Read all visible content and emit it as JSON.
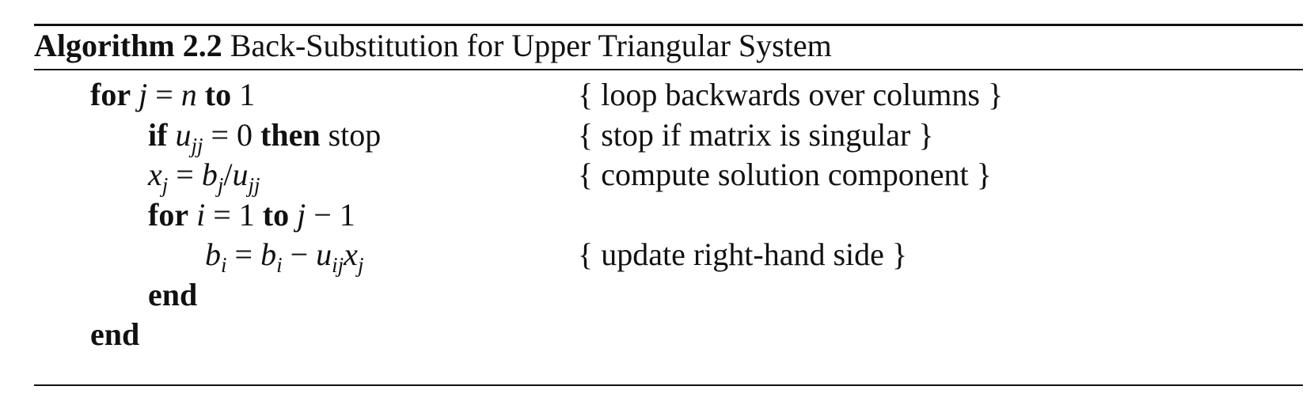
{
  "algorithm": {
    "label": "Algorithm 2.2",
    "title": "Back-Substitution for Upper Triangular System",
    "lines": {
      "for_outer": {
        "kw_for": "for",
        "var_j": "j",
        "eq": " = ",
        "var_n": "n",
        "kw_to": "to",
        "end_val": "1",
        "comment": "{ loop backwards over columns }"
      },
      "if_singular": {
        "kw_if": "if",
        "var_u": "u",
        "sub_jj": "jj",
        "eq_zero": " = 0 ",
        "kw_then": "then",
        "action": " stop",
        "comment": "{ stop if matrix is singular }"
      },
      "compute_x": {
        "var_x": "x",
        "sub_j": "j",
        "eq": " = ",
        "var_b": "b",
        "sub_j2": "j",
        "slash": "/",
        "var_u": "u",
        "sub_jj": "jj",
        "comment": "{ compute solution component }"
      },
      "for_inner": {
        "kw_for": "for",
        "var_i": "i",
        "eq_one": " = 1 ",
        "kw_to": "to",
        "var_j": "j",
        "minus_one": " − 1"
      },
      "update_b": {
        "var_b": "b",
        "sub_i": "i",
        "eq": " = ",
        "var_b2": "b",
        "sub_i2": "i",
        "minus": " − ",
        "var_u": "u",
        "sub_ij": "ij",
        "var_x": "x",
        "sub_j": "j",
        "comment": "{ update right-hand side }"
      },
      "end_inner": {
        "kw_end": "end"
      },
      "end_outer": {
        "kw_end": "end"
      }
    }
  }
}
